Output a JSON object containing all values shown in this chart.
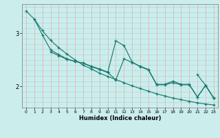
{
  "title": "",
  "xlabel": "Humidex (Indice chaleur)",
  "ylabel": "",
  "bg_color": "#cbeeed",
  "line_color": "#1a7a6e",
  "grid_color_v": "#e8b0b0",
  "grid_color_h": "#aad8d4",
  "xlim": [
    -0.5,
    23.5
  ],
  "ylim": [
    1.6,
    3.55
  ],
  "yticks": [
    2,
    3
  ],
  "xticks": [
    0,
    1,
    2,
    3,
    4,
    5,
    6,
    7,
    8,
    9,
    10,
    11,
    12,
    13,
    14,
    15,
    16,
    17,
    18,
    19,
    20,
    21,
    22,
    23
  ],
  "series": [
    [
      3.42,
      3.27,
      3.05,
      2.87,
      2.73,
      2.61,
      2.5,
      2.4,
      2.33,
      2.25,
      2.19,
      2.13,
      2.07,
      2.01,
      1.96,
      1.91,
      1.86,
      1.82,
      1.78,
      1.75,
      1.72,
      1.69,
      1.67,
      1.65
    ],
    [
      null,
      3.27,
      2.97,
      2.69,
      2.6,
      2.52,
      2.47,
      2.44,
      2.38,
      2.33,
      2.27,
      2.12,
      2.52,
      2.45,
      2.38,
      2.32,
      2.04,
      2.04,
      2.1,
      2.04,
      2.04,
      1.8,
      2.02,
      1.78
    ],
    [
      null,
      null,
      null,
      2.65,
      2.58,
      2.51,
      2.47,
      2.44,
      2.37,
      2.32,
      2.26,
      2.86,
      2.77,
      2.46,
      2.37,
      2.31,
      2.03,
      2.03,
      2.07,
      2.03,
      2.03,
      1.8,
      2.02,
      1.78
    ],
    [
      null,
      null,
      null,
      null,
      null,
      null,
      null,
      null,
      null,
      null,
      null,
      null,
      null,
      null,
      null,
      null,
      null,
      null,
      null,
      null,
      null,
      2.22,
      2.02,
      1.78
    ]
  ]
}
